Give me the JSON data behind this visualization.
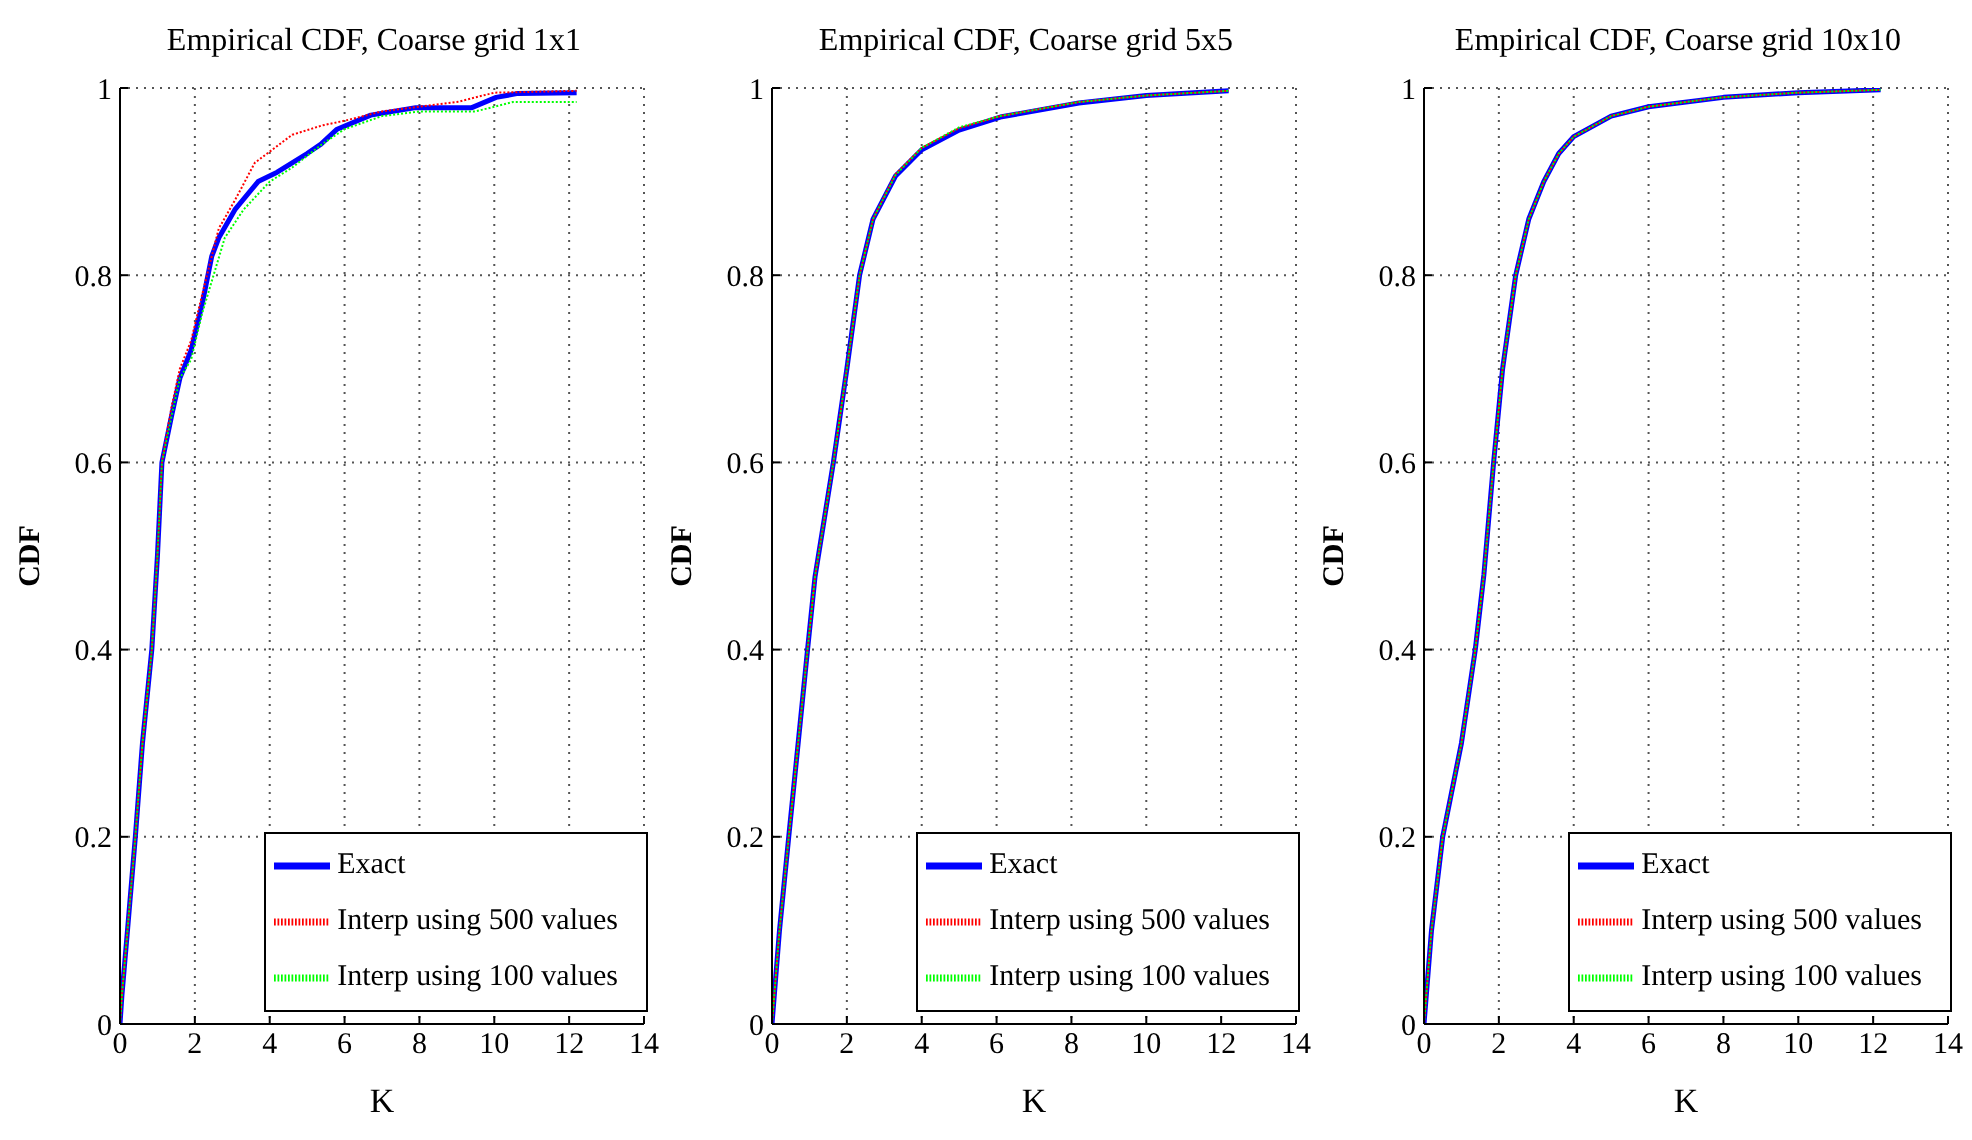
{
  "chart_data": [
    {
      "type": "line",
      "title": "Empirical CDF, Coarse grid 1x1",
      "xlabel": "K",
      "ylabel": "CDF",
      "xlim": [
        0,
        14
      ],
      "xticks": [
        0,
        2,
        4,
        6,
        8,
        10,
        12,
        14
      ],
      "ylim": [
        0,
        1
      ],
      "yticks": [
        0,
        0.2,
        0.4,
        0.6,
        0.8,
        1
      ],
      "grid": true,
      "legend": "bottom right",
      "series": [
        {
          "name": "Exact",
          "color": "#0000ff",
          "line_style": "solid",
          "x": [
            0,
            0.05,
            0.2,
            0.41,
            0.6,
            0.85,
            1.0,
            1.12,
            1.38,
            1.6,
            1.9,
            2.2,
            2.45,
            2.64,
            3.07,
            3.69,
            4.2,
            4.6,
            5.0,
            5.37,
            5.8,
            6.7,
            7.9,
            9.4,
            10.05,
            10.6,
            12.2
          ],
          "values": [
            0,
            0.03,
            0.1,
            0.2,
            0.3,
            0.4,
            0.5,
            0.6,
            0.65,
            0.69,
            0.72,
            0.77,
            0.82,
            0.84,
            0.87,
            0.9,
            0.91,
            0.92,
            0.93,
            0.94,
            0.956,
            0.971,
            0.979,
            0.979,
            0.99,
            0.994,
            0.995
          ]
        },
        {
          "name": "Interp using 500 values",
          "color": "#ff0000",
          "line_style": "dotted",
          "x": [
            0,
            0.05,
            0.2,
            0.41,
            0.6,
            0.85,
            1.0,
            1.12,
            1.38,
            1.6,
            1.9,
            2.2,
            2.45,
            2.64,
            3.07,
            3.6,
            4.6,
            5.4,
            6.0,
            7.0,
            8.0,
            9.0,
            10.0,
            12.2
          ],
          "values": [
            0,
            0.03,
            0.1,
            0.2,
            0.3,
            0.4,
            0.5,
            0.6,
            0.66,
            0.7,
            0.73,
            0.78,
            0.82,
            0.85,
            0.88,
            0.92,
            0.95,
            0.96,
            0.965,
            0.975,
            0.98,
            0.985,
            0.995,
            0.997
          ]
        },
        {
          "name": "Interp using 100 values",
          "color": "#00ff00",
          "line_style": "dotted",
          "x": [
            0,
            0.05,
            0.2,
            0.41,
            0.6,
            0.85,
            1.0,
            1.12,
            1.38,
            1.6,
            1.9,
            2.2,
            2.5,
            2.8,
            3.3,
            4.0,
            4.6,
            5.4,
            6.0,
            7.0,
            8.0,
            9.5,
            10.5,
            12.2
          ],
          "values": [
            0,
            0.03,
            0.1,
            0.2,
            0.3,
            0.4,
            0.5,
            0.6,
            0.65,
            0.69,
            0.71,
            0.76,
            0.8,
            0.84,
            0.87,
            0.9,
            0.915,
            0.94,
            0.956,
            0.97,
            0.975,
            0.975,
            0.985,
            0.985
          ]
        }
      ]
    },
    {
      "type": "line",
      "title": "Empirical CDF, Coarse grid 5x5",
      "xlabel": "K",
      "ylabel": "CDF",
      "xlim": [
        0,
        14
      ],
      "xticks": [
        0,
        2,
        4,
        6,
        8,
        10,
        12,
        14
      ],
      "ylim": [
        0,
        1
      ],
      "yticks": [
        0,
        0.2,
        0.4,
        0.6,
        0.8,
        1
      ],
      "grid": true,
      "legend": "bottom right",
      "series": [
        {
          "name": "Exact",
          "color": "#0000ff",
          "line_style": "solid",
          "x": [
            0,
            0.2,
            0.46,
            0.95,
            1.15,
            1.64,
            2.0,
            2.34,
            2.7,
            3.3,
            4.0,
            5.0,
            6.1,
            8.2,
            10.0,
            12.2
          ],
          "values": [
            0,
            0.1,
            0.205,
            0.4,
            0.478,
            0.6,
            0.7,
            0.8,
            0.86,
            0.906,
            0.934,
            0.955,
            0.969,
            0.984,
            0.992,
            0.997
          ]
        },
        {
          "name": "Interp using 500 values",
          "color": "#ff0000",
          "line_style": "dotted",
          "x": [
            0,
            0.2,
            0.46,
            0.95,
            1.15,
            1.64,
            2.0,
            2.34,
            2.7,
            3.3,
            4.0,
            5.0,
            6.1,
            8.2,
            10.0,
            12.2
          ],
          "values": [
            0,
            0.1,
            0.205,
            0.4,
            0.478,
            0.6,
            0.7,
            0.8,
            0.86,
            0.908,
            0.936,
            0.957,
            0.97,
            0.985,
            0.992,
            0.997
          ]
        },
        {
          "name": "Interp using 100 values",
          "color": "#00ff00",
          "line_style": "dotted",
          "x": [
            0,
            0.2,
            0.46,
            0.95,
            1.15,
            1.64,
            2.0,
            2.34,
            2.7,
            3.3,
            4.0,
            5.0,
            6.1,
            8.2,
            10.0,
            12.2
          ],
          "values": [
            0,
            0.1,
            0.205,
            0.4,
            0.478,
            0.6,
            0.7,
            0.8,
            0.86,
            0.907,
            0.936,
            0.958,
            0.97,
            0.985,
            0.992,
            0.997
          ]
        }
      ]
    },
    {
      "type": "line",
      "title": "Empirical CDF, Coarse grid 10x10",
      "xlabel": "K",
      "ylabel": "CDF",
      "xlim": [
        0,
        14
      ],
      "xticks": [
        0,
        2,
        4,
        6,
        8,
        10,
        12,
        14
      ],
      "ylim": [
        0,
        1
      ],
      "yticks": [
        0,
        0.2,
        0.4,
        0.6,
        0.8,
        1
      ],
      "grid": true,
      "legend": "bottom right",
      "series": [
        {
          "name": "Exact",
          "color": "#0000ff",
          "line_style": "solid",
          "x": [
            0,
            0.2,
            0.5,
            1.0,
            1.37,
            1.6,
            1.86,
            2.1,
            2.45,
            2.8,
            3.2,
            3.6,
            4.0,
            5.0,
            6.0,
            8.0,
            10.0,
            12.2
          ],
          "values": [
            0,
            0.1,
            0.2,
            0.3,
            0.4,
            0.48,
            0.6,
            0.7,
            0.8,
            0.86,
            0.9,
            0.93,
            0.948,
            0.97,
            0.98,
            0.99,
            0.995,
            0.998
          ]
        },
        {
          "name": "Interp using 500 values",
          "color": "#ff0000",
          "line_style": "dotted",
          "x": [
            0,
            0.2,
            0.5,
            1.0,
            1.37,
            1.6,
            1.86,
            2.1,
            2.45,
            2.8,
            3.2,
            3.6,
            4.0,
            5.0,
            6.0,
            8.0,
            10.0,
            12.2
          ],
          "values": [
            0,
            0.1,
            0.2,
            0.3,
            0.4,
            0.48,
            0.6,
            0.7,
            0.8,
            0.86,
            0.9,
            0.93,
            0.948,
            0.97,
            0.98,
            0.99,
            0.995,
            0.998
          ]
        },
        {
          "name": "Interp using 100 values",
          "color": "#00ff00",
          "line_style": "dotted",
          "x": [
            0,
            0.2,
            0.5,
            1.0,
            1.37,
            1.6,
            1.86,
            2.1,
            2.45,
            2.8,
            3.2,
            3.6,
            4.0,
            5.0,
            6.0,
            8.0,
            10.0,
            12.2
          ],
          "values": [
            0,
            0.1,
            0.2,
            0.3,
            0.4,
            0.48,
            0.6,
            0.7,
            0.8,
            0.86,
            0.9,
            0.93,
            0.948,
            0.97,
            0.98,
            0.99,
            0.995,
            0.998
          ]
        }
      ]
    }
  ]
}
